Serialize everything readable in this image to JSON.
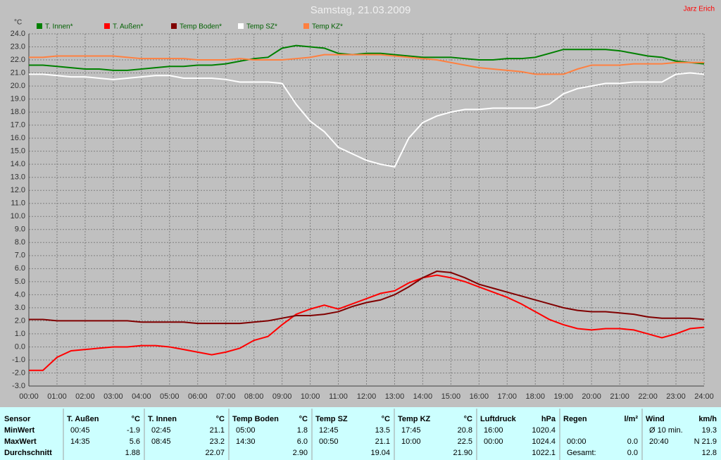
{
  "chart_data": {
    "type": "line",
    "title": "Samstag, 21.03.2009",
    "ylabel": "°C",
    "x": [
      0,
      0.5,
      1,
      1.5,
      2,
      2.5,
      3,
      3.5,
      4,
      4.5,
      5,
      5.5,
      6,
      6.5,
      7,
      7.5,
      8,
      8.5,
      9,
      9.5,
      10,
      10.5,
      11,
      11.5,
      12,
      12.5,
      13,
      13.5,
      14,
      14.5,
      15,
      15.5,
      16,
      16.5,
      17,
      17.5,
      18,
      18.5,
      19,
      19.5,
      20,
      20.5,
      21,
      21.5,
      22,
      22.5,
      23,
      23.5,
      24
    ],
    "xlim": [
      0,
      24
    ],
    "xticks": [
      {
        "value": 0,
        "label": "00:00"
      },
      {
        "value": 1,
        "label": "01:00"
      },
      {
        "value": 2,
        "label": "02:00"
      },
      {
        "value": 3,
        "label": "03:00"
      },
      {
        "value": 4,
        "label": "04:00"
      },
      {
        "value": 5,
        "label": "05:00"
      },
      {
        "value": 6,
        "label": "06:00"
      },
      {
        "value": 7,
        "label": "07:00"
      },
      {
        "value": 8,
        "label": "08:00"
      },
      {
        "value": 9,
        "label": "09:00"
      },
      {
        "value": 10,
        "label": "10:00"
      },
      {
        "value": 11,
        "label": "11:00"
      },
      {
        "value": 12,
        "label": "12:00"
      },
      {
        "value": 13,
        "label": "13:00"
      },
      {
        "value": 14,
        "label": "14:00"
      },
      {
        "value": 15,
        "label": "15:00"
      },
      {
        "value": 16,
        "label": "16:00"
      },
      {
        "value": 17,
        "label": "17:00"
      },
      {
        "value": 18,
        "label": "18:00"
      },
      {
        "value": 19,
        "label": "19:00"
      },
      {
        "value": 20,
        "label": "20:00"
      },
      {
        "value": 21,
        "label": "21:00"
      },
      {
        "value": 22,
        "label": "22:00"
      },
      {
        "value": 23,
        "label": "23:00"
      },
      {
        "value": 24,
        "label": "24:00"
      }
    ],
    "ylim": [
      -3,
      24
    ],
    "yticks": [
      {
        "value": -3,
        "label": "-3.0"
      },
      {
        "value": -2,
        "label": "-2.0"
      },
      {
        "value": -1,
        "label": "-1.0"
      },
      {
        "value": 0,
        "label": "0.0"
      },
      {
        "value": 1,
        "label": "1.0"
      },
      {
        "value": 2,
        "label": "2.0"
      },
      {
        "value": 3,
        "label": "3.0"
      },
      {
        "value": 4,
        "label": "4.0"
      },
      {
        "value": 5,
        "label": "5.0"
      },
      {
        "value": 6,
        "label": "6.0"
      },
      {
        "value": 7,
        "label": "7.0"
      },
      {
        "value": 8,
        "label": "8.0"
      },
      {
        "value": 9,
        "label": "9.0"
      },
      {
        "value": 10,
        "label": "10.0"
      },
      {
        "value": 11,
        "label": "11.0"
      },
      {
        "value": 12,
        "label": "12.0"
      },
      {
        "value": 13,
        "label": "13.0"
      },
      {
        "value": 14,
        "label": "14.0"
      },
      {
        "value": 15,
        "label": "15.0"
      },
      {
        "value": 16,
        "label": "16.0"
      },
      {
        "value": 17,
        "label": "17.0"
      },
      {
        "value": 18,
        "label": "18.0"
      },
      {
        "value": 19,
        "label": "19.0"
      },
      {
        "value": 20,
        "label": "20.0"
      },
      {
        "value": 21,
        "label": "21.0"
      },
      {
        "value": 22,
        "label": "22.0"
      },
      {
        "value": 23,
        "label": "23.0"
      },
      {
        "value": 24,
        "label": "24.0"
      }
    ],
    "grid": true,
    "series": [
      {
        "name": "T. Innen*",
        "color": "#008000",
        "values": [
          21.6,
          21.6,
          21.5,
          21.4,
          21.3,
          21.3,
          21.2,
          21.2,
          21.3,
          21.4,
          21.5,
          21.5,
          21.6,
          21.6,
          21.7,
          21.9,
          22.1,
          22.2,
          22.9,
          23.1,
          23.0,
          22.9,
          22.5,
          22.4,
          22.5,
          22.5,
          22.4,
          22.3,
          22.2,
          22.2,
          22.2,
          22.1,
          22.0,
          22.0,
          22.1,
          22.1,
          22.2,
          22.5,
          22.8,
          22.8,
          22.8,
          22.8,
          22.7,
          22.5,
          22.3,
          22.2,
          21.9,
          21.8,
          21.7
        ]
      },
      {
        "name": "T. Außen*",
        "color": "#ff0000",
        "values": [
          -1.8,
          -1.8,
          -0.8,
          -0.3,
          -0.2,
          -0.1,
          0.0,
          0.0,
          0.1,
          0.1,
          0.0,
          -0.2,
          -0.4,
          -0.6,
          -0.4,
          -0.1,
          0.5,
          0.8,
          1.7,
          2.5,
          2.9,
          3.2,
          2.9,
          3.3,
          3.7,
          4.1,
          4.3,
          4.9,
          5.3,
          5.5,
          5.3,
          5.0,
          4.6,
          4.2,
          3.8,
          3.3,
          2.7,
          2.1,
          1.7,
          1.4,
          1.3,
          1.4,
          1.4,
          1.3,
          1.0,
          0.7,
          1.0,
          1.4,
          1.5
        ]
      },
      {
        "name": "Temp Boden*",
        "color": "#800000",
        "values": [
          2.1,
          2.1,
          2.0,
          2.0,
          2.0,
          2.0,
          2.0,
          2.0,
          1.9,
          1.9,
          1.9,
          1.9,
          1.8,
          1.8,
          1.8,
          1.8,
          1.9,
          2.0,
          2.2,
          2.4,
          2.4,
          2.5,
          2.7,
          3.1,
          3.4,
          3.6,
          4.0,
          4.6,
          5.3,
          5.8,
          5.7,
          5.3,
          4.8,
          4.5,
          4.2,
          3.9,
          3.6,
          3.3,
          3.0,
          2.8,
          2.7,
          2.7,
          2.6,
          2.5,
          2.3,
          2.2,
          2.2,
          2.2,
          2.1
        ]
      },
      {
        "name": "Temp SZ*",
        "color": "#ffffff",
        "values": [
          20.9,
          20.9,
          20.8,
          20.7,
          20.7,
          20.6,
          20.5,
          20.6,
          20.7,
          20.8,
          20.8,
          20.6,
          20.6,
          20.6,
          20.5,
          20.3,
          20.3,
          20.3,
          20.2,
          18.6,
          17.3,
          16.5,
          15.3,
          14.8,
          14.3,
          14.0,
          13.8,
          16.0,
          17.2,
          17.7,
          18.0,
          18.2,
          18.2,
          18.3,
          18.3,
          18.3,
          18.3,
          18.6,
          19.4,
          19.8,
          20.0,
          20.2,
          20.2,
          20.3,
          20.3,
          20.3,
          20.9,
          21.0,
          20.9
        ]
      },
      {
        "name": "Temp KZ*",
        "color": "#ff8040",
        "values": [
          22.2,
          22.2,
          22.3,
          22.3,
          22.3,
          22.3,
          22.3,
          22.2,
          22.1,
          22.1,
          22.1,
          22.1,
          22.0,
          22.0,
          22.0,
          22.1,
          22.0,
          22.0,
          22.0,
          22.1,
          22.2,
          22.4,
          22.4,
          22.4,
          22.4,
          22.4,
          22.3,
          22.2,
          22.1,
          22.0,
          21.8,
          21.6,
          21.4,
          21.3,
          21.2,
          21.1,
          20.9,
          20.9,
          20.9,
          21.3,
          21.6,
          21.6,
          21.6,
          21.7,
          21.7,
          21.7,
          21.8,
          21.8,
          21.8
        ]
      }
    ]
  },
  "author": "Jarz Erich",
  "table": {
    "row_labels": [
      "Sensor",
      "MinWert",
      "MaxWert",
      "Durchschnitt"
    ],
    "columns": [
      {
        "name": "T. Außen",
        "unit": "°C",
        "rows": [
          [
            "00:45",
            "-1.9"
          ],
          [
            "14:35",
            "5.6"
          ],
          [
            "1.88"
          ]
        ]
      },
      {
        "name": "T. Innen",
        "unit": "°C",
        "rows": [
          [
            "02:45",
            "21.1"
          ],
          [
            "08:45",
            "23.2"
          ],
          [
            "22.07"
          ]
        ]
      },
      {
        "name": "Temp Boden",
        "unit": "°C",
        "rows": [
          [
            "05:00",
            "1.8"
          ],
          [
            "14:30",
            "6.0"
          ],
          [
            "2.90"
          ]
        ]
      },
      {
        "name": "Temp SZ",
        "unit": "°C",
        "rows": [
          [
            "12:45",
            "13.5"
          ],
          [
            "00:50",
            "21.1"
          ],
          [
            "19.04"
          ]
        ]
      },
      {
        "name": "Temp KZ",
        "unit": "°C",
        "rows": [
          [
            "17:45",
            "20.8"
          ],
          [
            "10:00",
            "22.5"
          ],
          [
            "21.90"
          ]
        ]
      },
      {
        "name": "Luftdruck",
        "unit": "hPa",
        "rows": [
          [
            "16:00",
            "1020.4"
          ],
          [
            "00:00",
            "1024.4"
          ],
          [
            "1022.1"
          ]
        ]
      },
      {
        "name": "Regen",
        "unit": "l/m²",
        "rows": [
          null,
          [
            "00:00",
            "0.0"
          ],
          [
            "Gesamt:",
            "0.0"
          ]
        ]
      },
      {
        "name": "Wind",
        "unit": "km/h",
        "rows": [
          [
            "Ø 10 min.",
            "19.3"
          ],
          [
            "20:40",
            "N 21.9"
          ],
          [
            "12.8"
          ]
        ]
      }
    ]
  }
}
